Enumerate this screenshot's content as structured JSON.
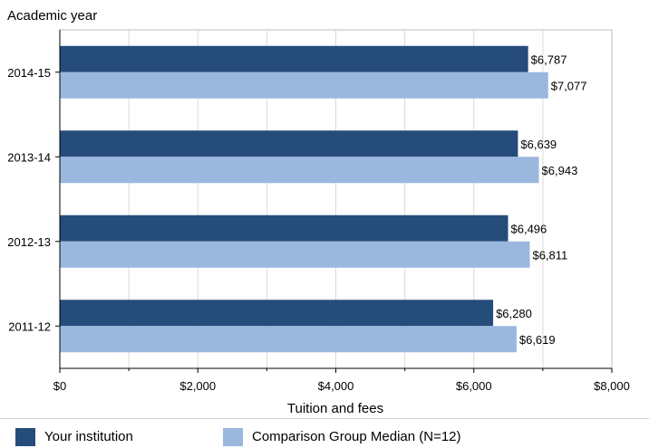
{
  "chart_data": {
    "type": "bar",
    "orientation": "horizontal",
    "title": "",
    "ylabel": "Academic year",
    "xlabel": "Tuition and fees",
    "categories": [
      "2014-15",
      "2013-14",
      "2012-13",
      "2011-12"
    ],
    "xlim": [
      0,
      8000
    ],
    "x_ticks": [
      0,
      2000,
      4000,
      6000,
      8000
    ],
    "x_tick_labels": [
      "$0",
      "$2,000",
      "$4,000",
      "$6,000",
      "$8,000"
    ],
    "grid": true,
    "legend_position": "bottom",
    "series": [
      {
        "name": "Your institution",
        "color": "#254c7a",
        "values": [
          6787,
          6639,
          6496,
          6280
        ],
        "labels": [
          "$6,787",
          "$6,639",
          "$6,496",
          "$6,280"
        ]
      },
      {
        "name": "Comparison Group Median (N=12)",
        "color": "#9ab7de",
        "values": [
          7077,
          6943,
          6811,
          6619
        ],
        "labels": [
          "$7,077",
          "$6,943",
          "$6,811",
          "$6,619"
        ]
      }
    ]
  }
}
